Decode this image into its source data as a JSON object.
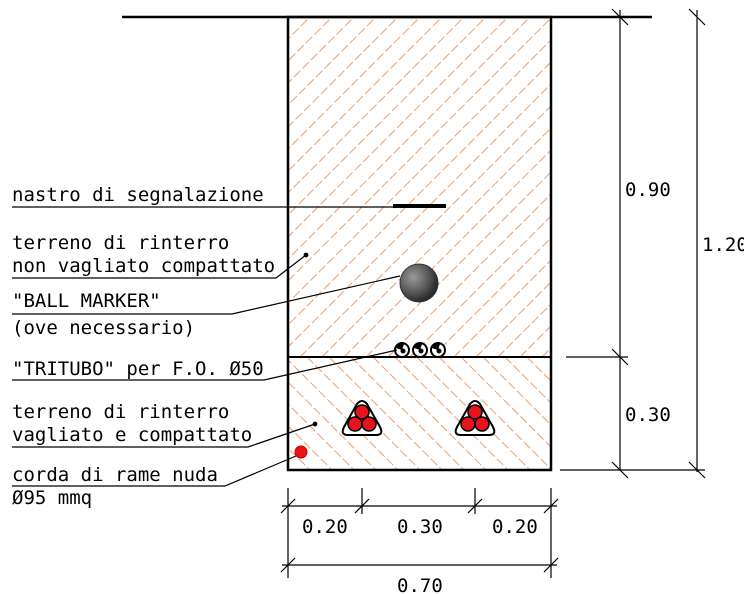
{
  "labels": {
    "warning_tape": "nastro di segnalazione",
    "backfill_upper_line1": "terreno di rinterro",
    "backfill_upper_line2": "non vagliato compattato",
    "ball_marker_line1": "\"BALL MARKER\"",
    "ball_marker_line2": "(ove necessario)",
    "tritubo": "\"TRITUBO\" per F.O. Ø50",
    "backfill_lower_line1": "terreno di rinterro",
    "backfill_lower_line2": "vagliato e compattato",
    "copper_line1": "corda di rame nuda",
    "copper_line2": "Ø95 mmq"
  },
  "dimensions": {
    "depth_upper": "0.90",
    "depth_total": "1.20",
    "depth_lower": "0.30",
    "width_left": "0.20",
    "width_middle": "0.30",
    "width_right": "0.20",
    "width_total": "0.70"
  },
  "colors": {
    "hatch": "#e8a070",
    "cable_red": "#e8141c",
    "marker_gray": "#555555"
  }
}
